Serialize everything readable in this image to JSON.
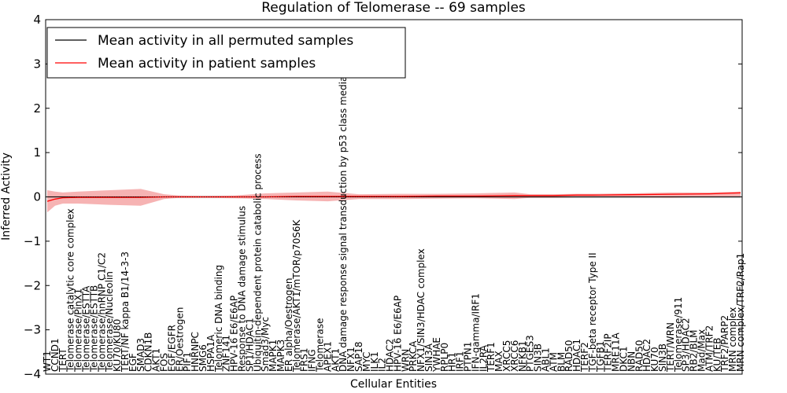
{
  "chart_data": {
    "type": "line",
    "title": "Regulation of Telomerase -- 69 samples",
    "xlabel": "Cellular Entities",
    "ylabel": "Inferred Activity",
    "ylim": [
      -4,
      4
    ],
    "yticks": [
      -4,
      -3,
      -2,
      -1,
      0,
      1,
      2,
      3,
      4
    ],
    "grid": false,
    "legend_position": "top-left",
    "legend": [
      {
        "label": "Mean activity in all permuted samples",
        "color": "#000000"
      },
      {
        "label": "Mean activity in patient samples",
        "color": "#ff0000"
      }
    ],
    "colors": {
      "patient_band": "#f4a0a0",
      "permuted_band": "#c8c8c8"
    },
    "categories": [
      "WT1",
      "CCND1",
      "TERT",
      "Telomerase catalytic core complex",
      "Telomerase/PinX1",
      "Telomerase/ESTTA",
      "Telomerase/ESTTB",
      "Telomerase/hnRNP C1/C2",
      "Telomerase/Nucleolin",
      "KU70/KU80",
      "TERT/NF kappa B1/14-3-3",
      "EGF",
      "SMAD3",
      "CDKN1B",
      "AKT1",
      "FOS",
      "EGF/EGFR",
      "ER/Oestrogen",
      "PIF1",
      "HNRNPC",
      "SMG6",
      "HSPA1A",
      "Telomeric DNA binding",
      "ZNF141",
      "HPV-16 E6/E6AP",
      "Response to DNA damage stimulus",
      "SP1/HDAC1",
      "Ubiquitin-dependent protein catabolic process",
      "Smad3/Myc",
      "MAPK1",
      "MAPK3",
      "ER alpha/Oestrogen",
      "Telomerase/AKT1/mTOR/p70S6K",
      "FRS1",
      "IFNG",
      "Telomerase",
      "APEX1",
      "AKT1",
      "DNA damage response signal transduction by p53 class mediator",
      "NFX1",
      "SAP18",
      "MYC",
      "ILK1",
      "IL2",
      "HDAC2",
      "HPV-16 E6/E6AP",
      "WRN",
      "PRKCA",
      "NFX1/SIN3/HDAC complex",
      "SIN3A",
      "YWHAE",
      "RPLP0",
      "HR1",
      "IRF1",
      "PTPN1",
      "IFN-gamma/IRF1",
      "IL2RA",
      "TERF1",
      "MAX",
      "XRCC5",
      "XRCC6",
      "NFKB1",
      "PTGES3",
      "SIN3B",
      "ABL1",
      "ATM",
      "BLM",
      "RAD50",
      "HDAC1",
      "TERF2",
      "TGF-beta receptor Type II",
      "TGFB1",
      "TERF2IP",
      "MRE11A",
      "DKC1",
      "NBN",
      "RAD50",
      "HDAC2",
      "KU70",
      "SIN3B",
      "TERT/WRN",
      "Telomerase/911",
      "SP3/HDAC2",
      "RB2/BLM",
      "Mad/Max",
      "ATM/TRF2",
      "KU/TEB",
      "TRF2/PARP2",
      "MRN complex",
      "MRN complex/TRF2/Rap1"
    ],
    "series": [
      {
        "name": "Mean activity in patient samples",
        "color": "#ff0000",
        "x": [
          0,
          1,
          2,
          4,
          8,
          12,
          15,
          17,
          20,
          24,
          28,
          32,
          36,
          40,
          45,
          50,
          55,
          60,
          62,
          65,
          68,
          70,
          75,
          80,
          85,
          89
        ],
        "values": [
          -0.1,
          -0.05,
          -0.02,
          -0.01,
          -0.01,
          -0.01,
          0.0,
          0.0,
          0.0,
          0.0,
          0.0,
          0.01,
          0.01,
          0.01,
          0.01,
          0.02,
          0.02,
          0.03,
          0.03,
          0.03,
          0.04,
          0.04,
          0.05,
          0.06,
          0.07,
          0.09
        ],
        "lower": [
          -0.35,
          -0.2,
          -0.15,
          -0.15,
          -0.18,
          -0.2,
          -0.05,
          -0.02,
          -0.02,
          -0.03,
          -0.05,
          -0.08,
          -0.1,
          -0.05,
          -0.05,
          -0.04,
          -0.03,
          -0.05,
          -0.02,
          -0.02,
          -0.01,
          -0.01,
          -0.01,
          -0.02,
          0.0,
          0.0
        ],
        "upper": [
          0.15,
          0.12,
          0.1,
          0.12,
          0.15,
          0.18,
          0.06,
          0.03,
          0.02,
          0.03,
          0.08,
          0.1,
          0.12,
          0.06,
          0.07,
          0.07,
          0.08,
          0.1,
          0.06,
          0.06,
          0.07,
          0.07,
          0.08,
          0.1,
          0.1,
          0.12
        ]
      },
      {
        "name": "Mean activity in all permuted samples",
        "color": "#000000",
        "x": [
          0,
          89
        ],
        "values": [
          0.0,
          0.0
        ],
        "lower": [
          -0.03,
          -0.03
        ],
        "upper": [
          0.03,
          0.03
        ]
      }
    ]
  }
}
